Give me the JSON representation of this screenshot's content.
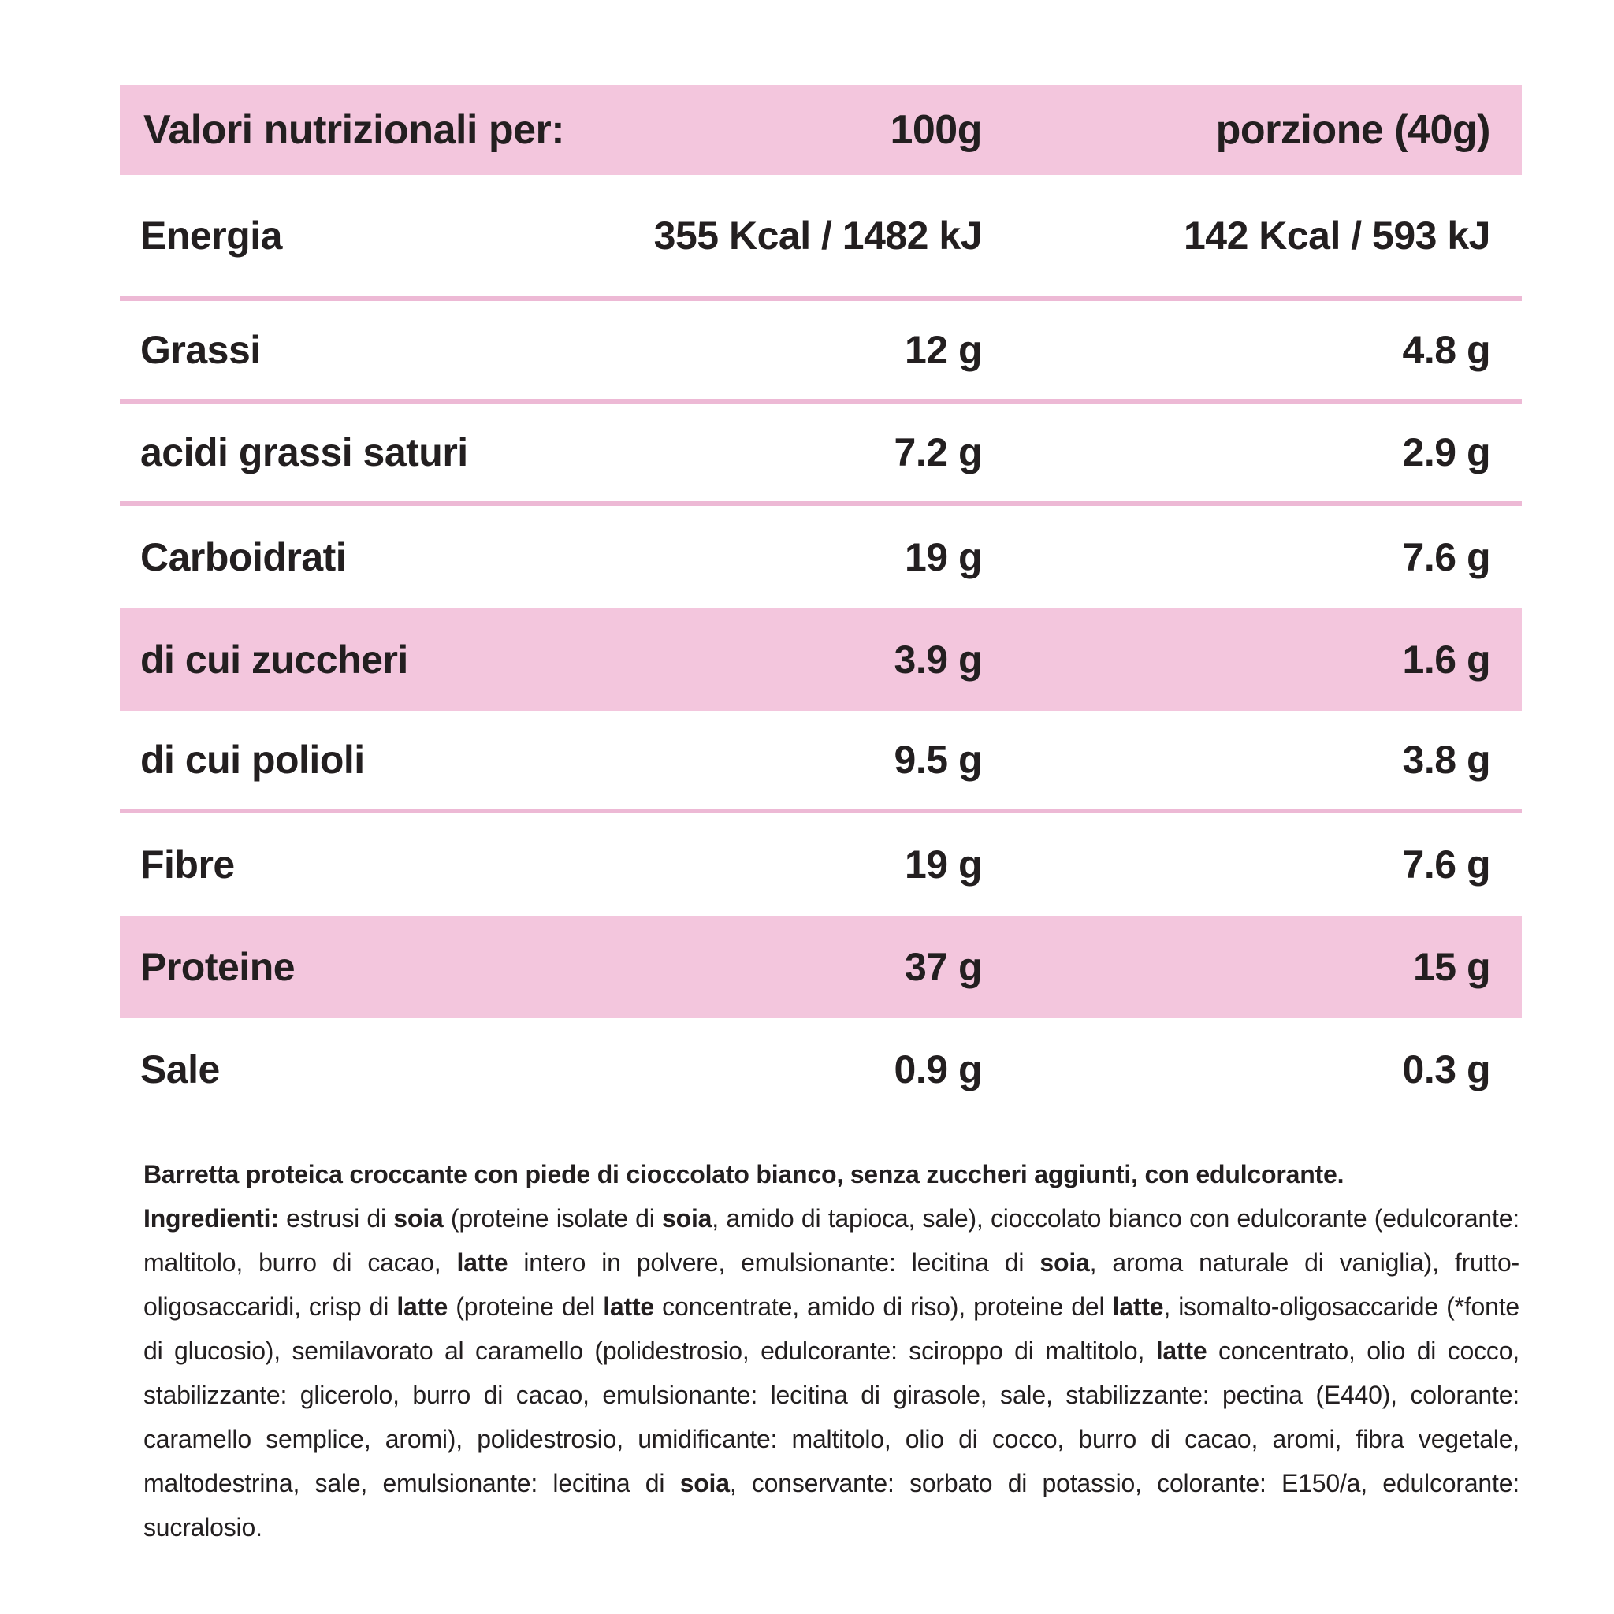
{
  "theme": {
    "background": "#ffffff",
    "band_pink": "#f3c6dd",
    "line_pink": "#edb9d5",
    "ink": "#231f20"
  },
  "table": {
    "header": {
      "label": "Valori nutrizionali per:",
      "col_100g": "100g",
      "col_portion": "porzione (40g)"
    },
    "rows": [
      {
        "label": "Energia",
        "per_100g": "355 Kcal / 1482 kJ",
        "per_portion": "142 Kcal / 593 kJ",
        "highlight": false,
        "divider_after": true
      },
      {
        "label": "Grassi",
        "per_100g": "12 g",
        "per_portion": "4.8 g",
        "highlight": false,
        "divider_after": true
      },
      {
        "label": "acidi grassi saturi",
        "per_100g": "7.2 g",
        "per_portion": "2.9 g",
        "highlight": false,
        "divider_after": true
      },
      {
        "label": "Carboidrati",
        "per_100g": "19 g",
        "per_portion": "7.6 g",
        "highlight": false,
        "divider_after": false
      },
      {
        "label": "di cui zuccheri",
        "per_100g": "3.9 g",
        "per_portion": "1.6 g",
        "highlight": true,
        "divider_after": false
      },
      {
        "label": "di cui polioli",
        "per_100g": "9.5 g",
        "per_portion": "3.8 g",
        "highlight": false,
        "divider_after": true
      },
      {
        "label": "Fibre",
        "per_100g": "19 g",
        "per_portion": "7.6 g",
        "highlight": false,
        "divider_after": false
      },
      {
        "label": "Proteine",
        "per_100g": "37 g",
        "per_portion": "15 g",
        "highlight": true,
        "divider_after": false
      },
      {
        "label": "Sale",
        "per_100g": "0.9 g",
        "per_portion": "0.3 g",
        "highlight": false,
        "divider_after": false
      }
    ]
  },
  "description": "Barretta proteica croccante con piede di cioccolato bianco, senza zuccheri aggiunti, con edulcorante.",
  "ingredients": {
    "segments": [
      {
        "bold": true,
        "text": "Ingredienti:"
      },
      {
        "bold": false,
        "text": " estrusi di "
      },
      {
        "bold": true,
        "text": "soia"
      },
      {
        "bold": false,
        "text": " (proteine isolate di "
      },
      {
        "bold": true,
        "text": "soia"
      },
      {
        "bold": false,
        "text": ", amido di tapioca, sale), cioccolato bianco con edulcorante (edulcorante: maltitolo, burro di cacao, "
      },
      {
        "bold": true,
        "text": "latte"
      },
      {
        "bold": false,
        "text": " intero in polvere, emulsionante: lecitina di "
      },
      {
        "bold": true,
        "text": "soia"
      },
      {
        "bold": false,
        "text": ", aroma naturale di vaniglia), frutto-oligosaccaridi, crisp di "
      },
      {
        "bold": true,
        "text": "latte"
      },
      {
        "bold": false,
        "text": " (proteine del "
      },
      {
        "bold": true,
        "text": "latte"
      },
      {
        "bold": false,
        "text": " concentrate, amido di riso), proteine del "
      },
      {
        "bold": true,
        "text": "latte"
      },
      {
        "bold": false,
        "text": ", isomalto-oligosaccaride (*fonte di glucosio), semilavorato al caramello (polidestrosio, edulcorante: sciroppo di maltitolo, "
      },
      {
        "bold": true,
        "text": "latte"
      },
      {
        "bold": false,
        "text": " concentrato, olio di cocco, stabilizzante: glicerolo, burro di cacao, emulsionante: lecitina di girasole, sale, stabilizzante: pectina (E440), colorante: caramello semplice, aromi), polidestrosio, umidificante: maltitolo, olio di cocco, burro di cacao, aromi, fibra vegetale, maltodestrina, sale, emulsionante: lecitina di "
      },
      {
        "bold": true,
        "text": "soia"
      },
      {
        "bold": false,
        "text": ", conservante: sorbato di potassio, colorante: E150/a, edulcorante: sucralosio."
      }
    ]
  }
}
